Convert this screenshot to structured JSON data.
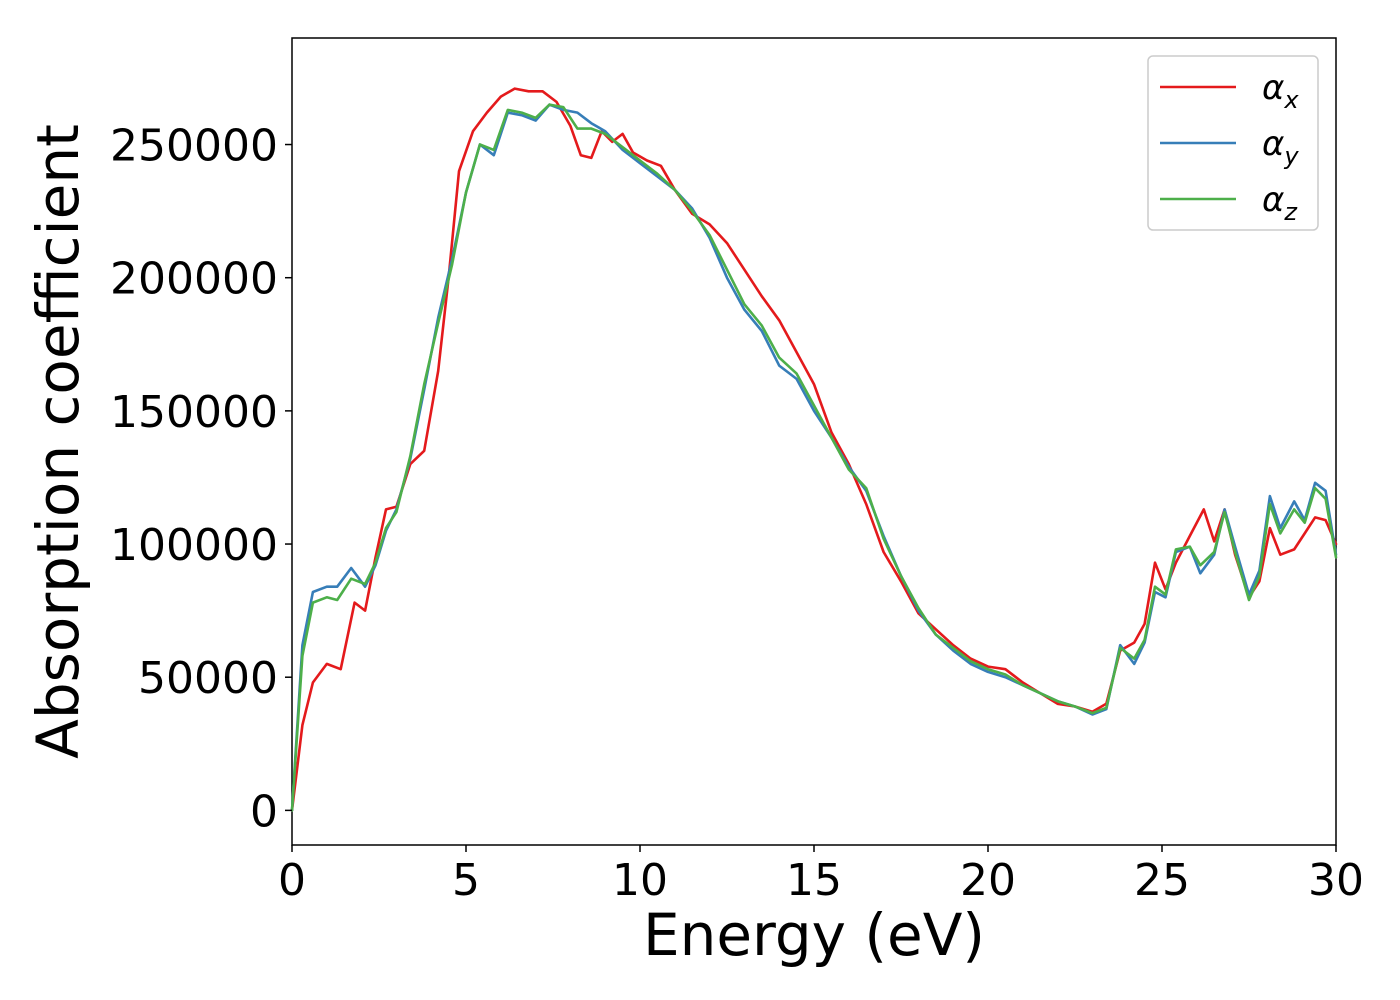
{
  "chart_data": {
    "type": "line",
    "title": "",
    "xlabel": "Energy (eV)",
    "ylabel": "Absorption coefficient",
    "xlim": [
      0,
      30
    ],
    "ylim": [
      -13000,
      290000
    ],
    "xticks": [
      "0",
      "5",
      "10",
      "15",
      "20",
      "25",
      "30"
    ],
    "yticks": [
      "0",
      "50000",
      "100000",
      "150000",
      "200000",
      "250000"
    ],
    "grid": false,
    "legend_position": "top-right",
    "series": [
      {
        "name": "αx",
        "legend_base": "α",
        "legend_sub": "x",
        "color": "#e41a1c",
        "points": [
          [
            0,
            0
          ],
          [
            0.3,
            32000
          ],
          [
            0.6,
            48000
          ],
          [
            1.0,
            55000
          ],
          [
            1.4,
            53000
          ],
          [
            1.8,
            78000
          ],
          [
            2.1,
            75000
          ],
          [
            2.4,
            95000
          ],
          [
            2.7,
            113000
          ],
          [
            3.0,
            114000
          ],
          [
            3.4,
            130000
          ],
          [
            3.8,
            135000
          ],
          [
            4.2,
            165000
          ],
          [
            4.5,
            200000
          ],
          [
            4.8,
            240000
          ],
          [
            5.2,
            255000
          ],
          [
            5.6,
            262000
          ],
          [
            6.0,
            268000
          ],
          [
            6.4,
            271000
          ],
          [
            6.8,
            270000
          ],
          [
            7.2,
            270000
          ],
          [
            7.6,
            266000
          ],
          [
            8.0,
            257000
          ],
          [
            8.3,
            246000
          ],
          [
            8.6,
            245000
          ],
          [
            8.9,
            255000
          ],
          [
            9.2,
            251000
          ],
          [
            9.5,
            254000
          ],
          [
            9.8,
            247000
          ],
          [
            10.2,
            244000
          ],
          [
            10.6,
            242000
          ],
          [
            11.0,
            233000
          ],
          [
            11.5,
            224000
          ],
          [
            12.0,
            220000
          ],
          [
            12.5,
            213000
          ],
          [
            13.0,
            203000
          ],
          [
            13.5,
            193000
          ],
          [
            14.0,
            184000
          ],
          [
            14.5,
            172000
          ],
          [
            15.0,
            160000
          ],
          [
            15.5,
            142000
          ],
          [
            16.0,
            130000
          ],
          [
            16.5,
            115000
          ],
          [
            17.0,
            97000
          ],
          [
            17.5,
            86000
          ],
          [
            18.0,
            74000
          ],
          [
            18.5,
            68000
          ],
          [
            19.0,
            62000
          ],
          [
            19.5,
            57000
          ],
          [
            20.0,
            54000
          ],
          [
            20.5,
            53000
          ],
          [
            21.0,
            48000
          ],
          [
            21.5,
            44000
          ],
          [
            22.0,
            40000
          ],
          [
            22.5,
            39000
          ],
          [
            23.0,
            37000
          ],
          [
            23.4,
            40000
          ],
          [
            23.8,
            60000
          ],
          [
            24.2,
            63000
          ],
          [
            24.5,
            70000
          ],
          [
            24.8,
            93000
          ],
          [
            25.1,
            83000
          ],
          [
            25.4,
            93000
          ],
          [
            25.8,
            103000
          ],
          [
            26.2,
            113000
          ],
          [
            26.5,
            101000
          ],
          [
            26.8,
            113000
          ],
          [
            27.1,
            96000
          ],
          [
            27.5,
            80000
          ],
          [
            27.8,
            86000
          ],
          [
            28.1,
            106000
          ],
          [
            28.4,
            96000
          ],
          [
            28.8,
            98000
          ],
          [
            29.1,
            104000
          ],
          [
            29.4,
            110000
          ],
          [
            29.7,
            109000
          ],
          [
            30.0,
            100000
          ]
        ]
      },
      {
        "name": "αy",
        "legend_base": "α",
        "legend_sub": "y",
        "color": "#377eb8",
        "points": [
          [
            0,
            0
          ],
          [
            0.3,
            62000
          ],
          [
            0.6,
            82000
          ],
          [
            1.0,
            84000
          ],
          [
            1.3,
            84000
          ],
          [
            1.7,
            91000
          ],
          [
            2.1,
            84000
          ],
          [
            2.4,
            92000
          ],
          [
            2.7,
            105000
          ],
          [
            3.0,
            113000
          ],
          [
            3.4,
            132000
          ],
          [
            3.8,
            158000
          ],
          [
            4.2,
            185000
          ],
          [
            4.6,
            207000
          ],
          [
            5.0,
            232000
          ],
          [
            5.4,
            250000
          ],
          [
            5.8,
            246000
          ],
          [
            6.2,
            262000
          ],
          [
            6.6,
            261000
          ],
          [
            7.0,
            259000
          ],
          [
            7.4,
            265000
          ],
          [
            7.8,
            263000
          ],
          [
            8.2,
            262000
          ],
          [
            8.6,
            258000
          ],
          [
            9.0,
            255000
          ],
          [
            9.5,
            248000
          ],
          [
            10.0,
            243000
          ],
          [
            10.5,
            238000
          ],
          [
            11.0,
            233000
          ],
          [
            11.5,
            226000
          ],
          [
            12.0,
            215000
          ],
          [
            12.5,
            200000
          ],
          [
            13.0,
            188000
          ],
          [
            13.5,
            180000
          ],
          [
            14.0,
            167000
          ],
          [
            14.5,
            162000
          ],
          [
            15.0,
            150000
          ],
          [
            15.5,
            140000
          ],
          [
            16.0,
            129000
          ],
          [
            16.5,
            120000
          ],
          [
            17.0,
            103000
          ],
          [
            17.5,
            88000
          ],
          [
            18.0,
            75000
          ],
          [
            18.5,
            66000
          ],
          [
            19.0,
            60000
          ],
          [
            19.5,
            55000
          ],
          [
            20.0,
            52000
          ],
          [
            20.5,
            50000
          ],
          [
            21.0,
            47000
          ],
          [
            21.5,
            44000
          ],
          [
            22.0,
            41000
          ],
          [
            22.5,
            39000
          ],
          [
            23.0,
            36000
          ],
          [
            23.4,
            38000
          ],
          [
            23.8,
            62000
          ],
          [
            24.2,
            55000
          ],
          [
            24.5,
            63000
          ],
          [
            24.8,
            82000
          ],
          [
            25.1,
            80000
          ],
          [
            25.4,
            97000
          ],
          [
            25.8,
            99000
          ],
          [
            26.1,
            89000
          ],
          [
            26.5,
            96000
          ],
          [
            26.8,
            113000
          ],
          [
            27.1,
            99000
          ],
          [
            27.5,
            81000
          ],
          [
            27.8,
            90000
          ],
          [
            28.1,
            118000
          ],
          [
            28.4,
            106000
          ],
          [
            28.8,
            116000
          ],
          [
            29.1,
            109000
          ],
          [
            29.4,
            123000
          ],
          [
            29.7,
            120000
          ],
          [
            30.0,
            96000
          ]
        ]
      },
      {
        "name": "αz",
        "legend_base": "α",
        "legend_sub": "z",
        "color": "#4daf4a",
        "points": [
          [
            0,
            0
          ],
          [
            0.3,
            58000
          ],
          [
            0.6,
            78000
          ],
          [
            1.0,
            80000
          ],
          [
            1.3,
            79000
          ],
          [
            1.7,
            87000
          ],
          [
            2.1,
            85000
          ],
          [
            2.4,
            93000
          ],
          [
            2.7,
            106000
          ],
          [
            3.0,
            112000
          ],
          [
            3.4,
            133000
          ],
          [
            3.8,
            160000
          ],
          [
            4.2,
            183000
          ],
          [
            4.6,
            205000
          ],
          [
            5.0,
            232000
          ],
          [
            5.4,
            250000
          ],
          [
            5.8,
            248000
          ],
          [
            6.2,
            263000
          ],
          [
            6.6,
            262000
          ],
          [
            7.0,
            260000
          ],
          [
            7.4,
            265000
          ],
          [
            7.8,
            264000
          ],
          [
            8.2,
            256000
          ],
          [
            8.6,
            256000
          ],
          [
            9.0,
            254000
          ],
          [
            9.5,
            249000
          ],
          [
            10.0,
            244000
          ],
          [
            10.5,
            239000
          ],
          [
            11.0,
            233000
          ],
          [
            11.5,
            225000
          ],
          [
            12.0,
            216000
          ],
          [
            12.5,
            203000
          ],
          [
            13.0,
            190000
          ],
          [
            13.5,
            182000
          ],
          [
            14.0,
            170000
          ],
          [
            14.5,
            164000
          ],
          [
            15.0,
            152000
          ],
          [
            15.5,
            140000
          ],
          [
            16.0,
            128000
          ],
          [
            16.5,
            121000
          ],
          [
            17.0,
            102000
          ],
          [
            17.5,
            88000
          ],
          [
            18.0,
            76000
          ],
          [
            18.5,
            66000
          ],
          [
            19.0,
            61000
          ],
          [
            19.5,
            56000
          ],
          [
            20.0,
            53000
          ],
          [
            20.5,
            51000
          ],
          [
            21.0,
            47000
          ],
          [
            21.5,
            44000
          ],
          [
            22.0,
            41000
          ],
          [
            22.5,
            39000
          ],
          [
            23.0,
            36500
          ],
          [
            23.4,
            38500
          ],
          [
            23.8,
            61000
          ],
          [
            24.2,
            57000
          ],
          [
            24.5,
            64000
          ],
          [
            24.8,
            84000
          ],
          [
            25.1,
            81000
          ],
          [
            25.4,
            98000
          ],
          [
            25.8,
            99000
          ],
          [
            26.1,
            92000
          ],
          [
            26.5,
            97000
          ],
          [
            26.8,
            112000
          ],
          [
            27.1,
            97000
          ],
          [
            27.5,
            79000
          ],
          [
            27.8,
            88000
          ],
          [
            28.1,
            115000
          ],
          [
            28.4,
            104000
          ],
          [
            28.8,
            113000
          ],
          [
            29.1,
            108000
          ],
          [
            29.4,
            121000
          ],
          [
            29.7,
            117000
          ],
          [
            30.0,
            95000
          ]
        ]
      }
    ]
  }
}
